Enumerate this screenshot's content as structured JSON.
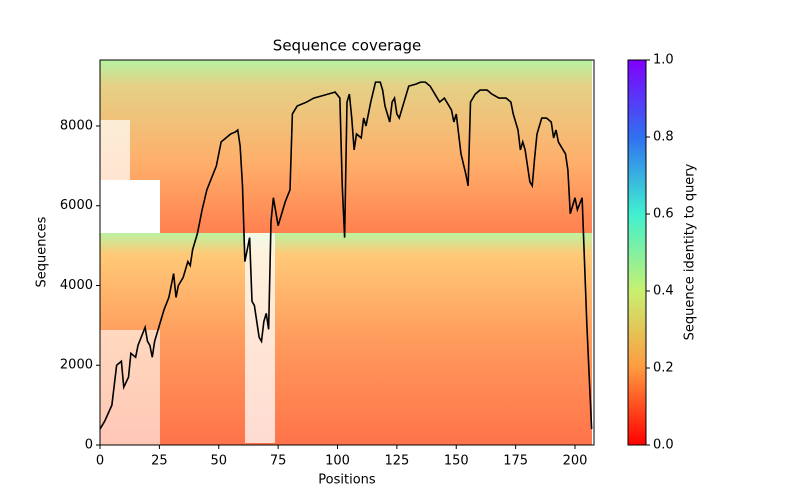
{
  "chart_data": {
    "type": "line",
    "title": "Sequence coverage",
    "x_label": "Positions",
    "y_label": "Sequences",
    "colorbar_label": "Sequence identity to query",
    "xlim": [
      0,
      208
    ],
    "ylim": [
      0,
      9655
    ],
    "xticks": [
      0,
      25,
      50,
      75,
      100,
      125,
      150,
      175,
      200
    ],
    "yticks": [
      0,
      2000,
      4000,
      6000,
      8000
    ],
    "colorbar_lim": [
      0,
      1
    ],
    "colorbar_ticks": [
      {
        "value": 0,
        "label": "0.0"
      },
      0.2,
      0.4,
      0.6,
      0.8,
      {
        "value": 1,
        "label": "1.0"
      }
    ],
    "color": "#000000",
    "x": [
      0,
      2,
      5,
      7,
      9,
      10,
      12,
      13,
      15,
      16,
      19,
      20,
      21,
      22,
      23,
      25,
      27,
      29,
      31,
      32,
      33,
      35,
      37,
      38,
      39,
      41,
      43,
      45,
      47,
      49,
      51,
      53,
      55,
      57,
      58,
      59,
      60,
      61,
      63,
      64,
      65,
      66,
      67,
      68,
      69,
      70,
      71,
      72,
      73,
      75,
      77,
      78,
      80,
      81,
      83,
      87,
      90,
      93,
      96,
      99,
      101,
      102,
      103,
      104,
      105,
      106,
      107,
      108,
      110,
      111,
      112,
      114,
      116,
      118,
      119,
      120,
      121,
      122,
      123,
      124,
      125,
      126,
      128,
      130,
      133,
      135,
      137,
      139,
      141,
      143,
      145,
      147,
      148,
      149,
      150,
      151,
      152,
      154,
      155,
      156,
      158,
      160,
      163,
      165,
      168,
      171,
      173,
      174,
      176,
      177,
      178,
      179,
      181,
      182,
      183,
      184,
      186,
      188,
      190,
      191,
      192,
      193,
      194,
      196,
      197,
      198,
      200,
      201,
      203,
      205,
      207
    ],
    "values": [
      400,
      600,
      1000,
      2000,
      2100,
      1450,
      1700,
      2300,
      2200,
      2500,
      2950,
      2600,
      2500,
      2200,
      2600,
      3000,
      3400,
      3700,
      4300,
      3700,
      4000,
      4200,
      4600,
      4500,
      4900,
      5300,
      5900,
      6400,
      6700,
      7000,
      7600,
      7700,
      7800,
      7850,
      7900,
      7500,
      6500,
      4600,
      5200,
      3600,
      3500,
      3100,
      2700,
      2600,
      3100,
      3300,
      2900,
      5600,
      6200,
      5500,
      5900,
      6100,
      6400,
      8300,
      8500,
      8600,
      8700,
      8750,
      8800,
      8850,
      8700,
      6500,
      5200,
      8600,
      8800,
      8200,
      7400,
      7800,
      7700,
      8200,
      8000,
      8600,
      9100,
      9100,
      8900,
      8500,
      8300,
      8100,
      8600,
      8700,
      8300,
      8200,
      8600,
      9000,
      9050,
      9100,
      9100,
      9000,
      8800,
      8600,
      8700,
      8500,
      8400,
      8100,
      8300,
      7800,
      7300,
      6800,
      6500,
      8600,
      8800,
      8900,
      8900,
      8800,
      8700,
      8700,
      8600,
      8300,
      7900,
      7400,
      7600,
      7400,
      6600,
      6500,
      7200,
      7800,
      8200,
      8200,
      8100,
      7700,
      7900,
      7600,
      7500,
      7300,
      6900,
      5800,
      6200,
      5900,
      6200,
      3000,
      400
    ]
  }
}
